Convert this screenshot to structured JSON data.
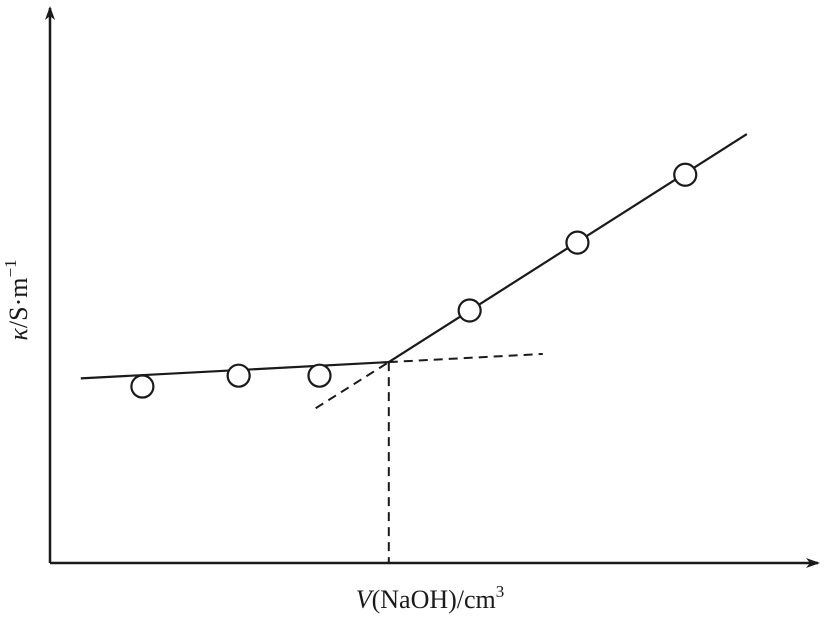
{
  "chart_data": {
    "type": "line",
    "xlabel": {
      "var": "V",
      "rest": "(NaOH)/cm",
      "sup": "3"
    },
    "ylabel": {
      "var": "κ",
      "rest": "/S·m",
      "sup": "−1"
    },
    "xlim": [
      0,
      10
    ],
    "ylim": [
      0,
      10
    ],
    "grid": false,
    "legend": "none",
    "series": [
      {
        "role": "points",
        "x": [
          1.2,
          2.45,
          3.5,
          5.45,
          6.85,
          8.25
        ],
        "y": [
          3.25,
          3.45,
          3.45,
          4.65,
          5.9,
          7.15
        ]
      },
      {
        "role": "fit-lower",
        "x": [
          0.4,
          4.4
        ],
        "y": [
          3.4,
          3.7
        ]
      },
      {
        "role": "fit-upper",
        "x": [
          4.4,
          9.05
        ],
        "y": [
          3.7,
          7.9
        ]
      },
      {
        "role": "extrap-lower",
        "x": [
          4.4,
          6.4
        ],
        "y": [
          3.7,
          3.85
        ]
      },
      {
        "role": "extrap-upper",
        "x": [
          3.45,
          4.4
        ],
        "y": [
          2.85,
          3.7
        ]
      }
    ],
    "equivalence_x": 4.4
  }
}
